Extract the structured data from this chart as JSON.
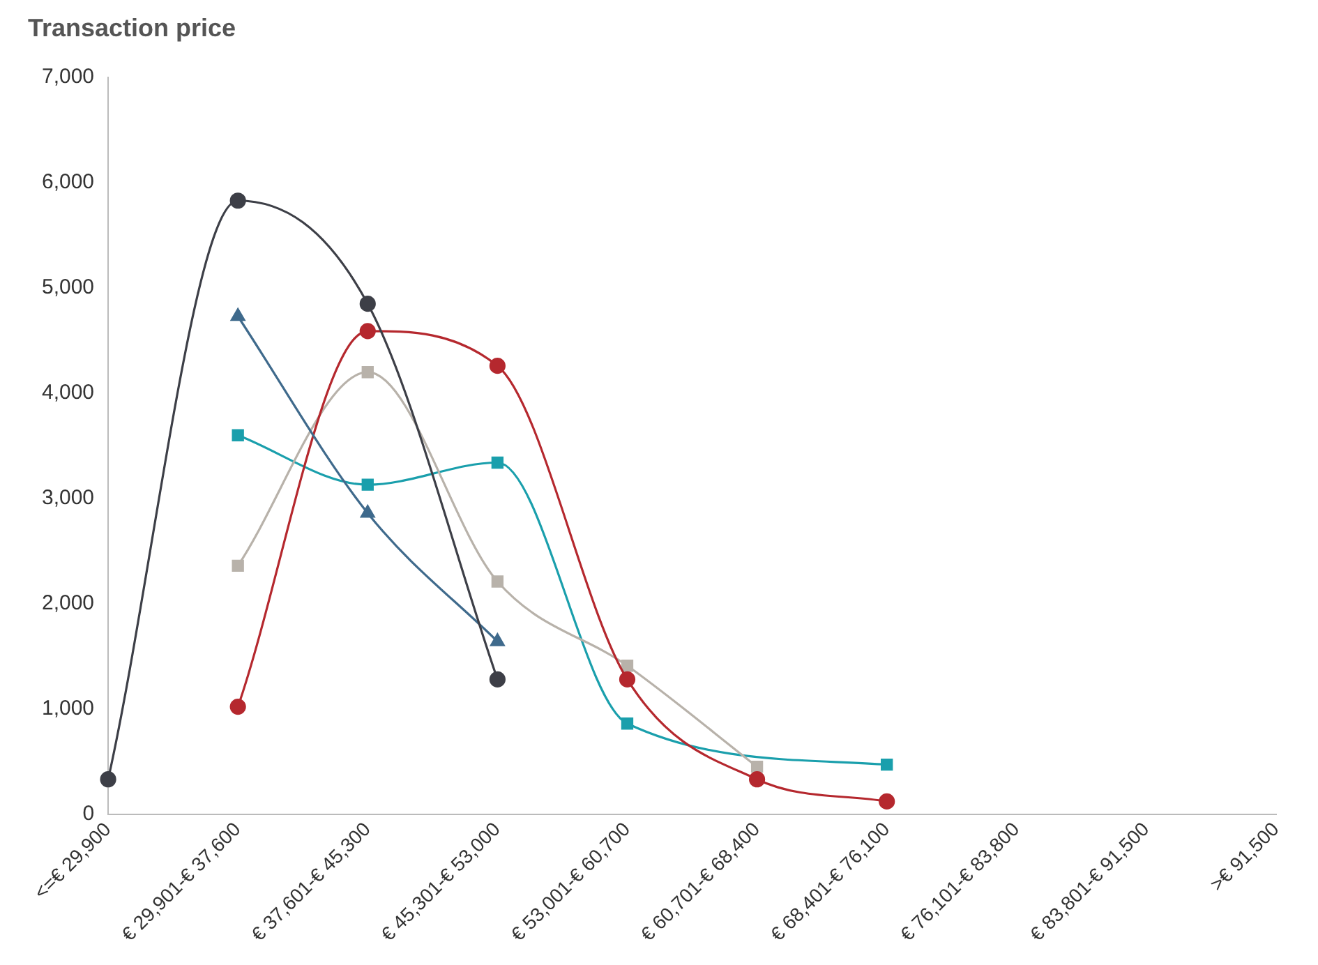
{
  "chart_data": {
    "type": "line",
    "title": "Transaction price",
    "categories": [
      "<=€ 29,900",
      "€ 29,901-€ 37,600",
      "€ 37,601-€ 45,300",
      "€ 45,301-€ 53,000",
      "€ 53,001-€ 60,700",
      "€ 60,701-€ 68,400",
      "€ 68,401-€ 76,100",
      "€ 76,101-€ 83,800",
      "€ 83,801-€ 91,500",
      ">€ 91,500"
    ],
    "series": [
      {
        "color": "#3d3f47",
        "marker": "circle",
        "values": [
          330,
          5830,
          4850,
          1280,
          null,
          null,
          null,
          null,
          null,
          null
        ]
      },
      {
        "color": "#3f6a8c",
        "marker": "triangle",
        "values": [
          null,
          4730,
          2860,
          1640,
          null,
          null,
          null,
          null,
          null,
          null
        ]
      },
      {
        "color": "#b5282e",
        "marker": "circle",
        "values": [
          null,
          1020,
          4590,
          4260,
          1280,
          330,
          120,
          null,
          null,
          null
        ]
      },
      {
        "color": "#b8b2aa",
        "marker": "square",
        "values": [
          null,
          2360,
          4200,
          2210,
          1410,
          450,
          null,
          null,
          null,
          null
        ]
      },
      {
        "color": "#1a9fac",
        "marker": "square",
        "values": [
          null,
          3600,
          3130,
          3340,
          860,
          null,
          470,
          null,
          null,
          null
        ]
      }
    ],
    "ylim": [
      0,
      7000
    ],
    "yticks": [
      0,
      {
        "value": 1000,
        "label": "1,000"
      },
      {
        "value": 2000,
        "label": "2,000"
      },
      {
        "value": 3000,
        "label": "3,000"
      },
      {
        "value": 4000,
        "label": "4,000"
      },
      {
        "value": 5000,
        "label": "5,000"
      },
      {
        "value": 6000,
        "label": "6,000"
      },
      {
        "value": 7000,
        "label": "7,000"
      }
    ],
    "grid": false,
    "legend": false
  }
}
